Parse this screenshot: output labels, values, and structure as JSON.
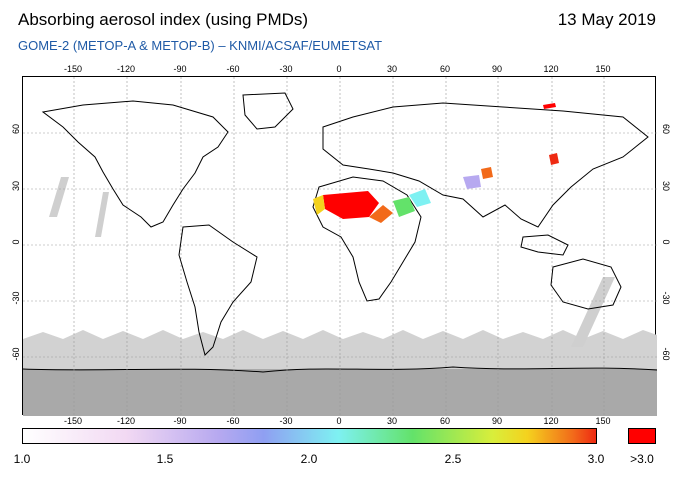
{
  "header": {
    "title": "Absorbing aerosol index (using PMDs)",
    "date": "13 May 2019",
    "subtitle": "GOME-2 (METOP-A & METOP-B)  –  KNMI/ACSAF/EUMETSAT"
  },
  "map": {
    "lon_ticks": [
      "-150",
      "-120",
      "-90",
      "-60",
      "-30",
      "0",
      "30",
      "60",
      "90",
      "120",
      "150"
    ],
    "lat_ticks": [
      "60",
      "30",
      "0",
      "-30",
      "-60"
    ],
    "gridlines": true
  },
  "colorbar": {
    "labels": [
      "1.0",
      "1.5",
      "2.0",
      "2.5",
      "3.0"
    ],
    "over_label": ">3.0",
    "colors": [
      "#ffffff",
      "#f2d9f3",
      "#b7a9f0",
      "#8f9ff2",
      "#7ef1f2",
      "#63e26a",
      "#d9ee3b",
      "#f4d21e",
      "#f26a1a",
      "#ee2a12"
    ],
    "over_color": "#ff0000"
  }
}
